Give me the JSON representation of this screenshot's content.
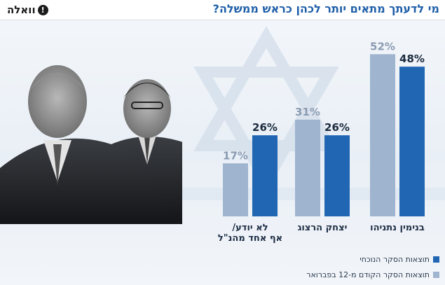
{
  "header": {
    "title": "מי לדעתך מתאים יותר לכהן כראש ממשלה?",
    "logo_text": "וואלה",
    "logo_badge": "!"
  },
  "colors": {
    "current": "#2166b3",
    "previous": "#9fb4cf",
    "title": "#1f5fa8",
    "percent_current": "#1b2a3d",
    "percent_previous": "#8a9bb1"
  },
  "chart_data": {
    "type": "bar",
    "title": "מי לדעתך מתאים יותר לכהן כראש ממשלה?",
    "unit": "%",
    "ylim": [
      0,
      55
    ],
    "grid": false,
    "legend_position": "bottom-right",
    "categories": [
      [
        "בנימין נתניהו"
      ],
      [
        "יצחק הרצוג"
      ],
      [
        "לא יודע/",
        "אף אחד מהנ\"ל"
      ]
    ],
    "series": [
      {
        "name": "תוצאות הסקר הקודם מ-12 בפברואר",
        "key": "previous",
        "values": [
          52,
          31,
          17
        ]
      },
      {
        "name": "תוצאות הסקר הנוכחי",
        "key": "current",
        "values": [
          48,
          26,
          26
        ]
      }
    ],
    "legend": [
      {
        "label": "תוצאות הסקר הנוכחי",
        "key": "current"
      },
      {
        "label": "תוצאות הסקר הקודם מ-12 בפברואר",
        "key": "previous"
      }
    ]
  }
}
